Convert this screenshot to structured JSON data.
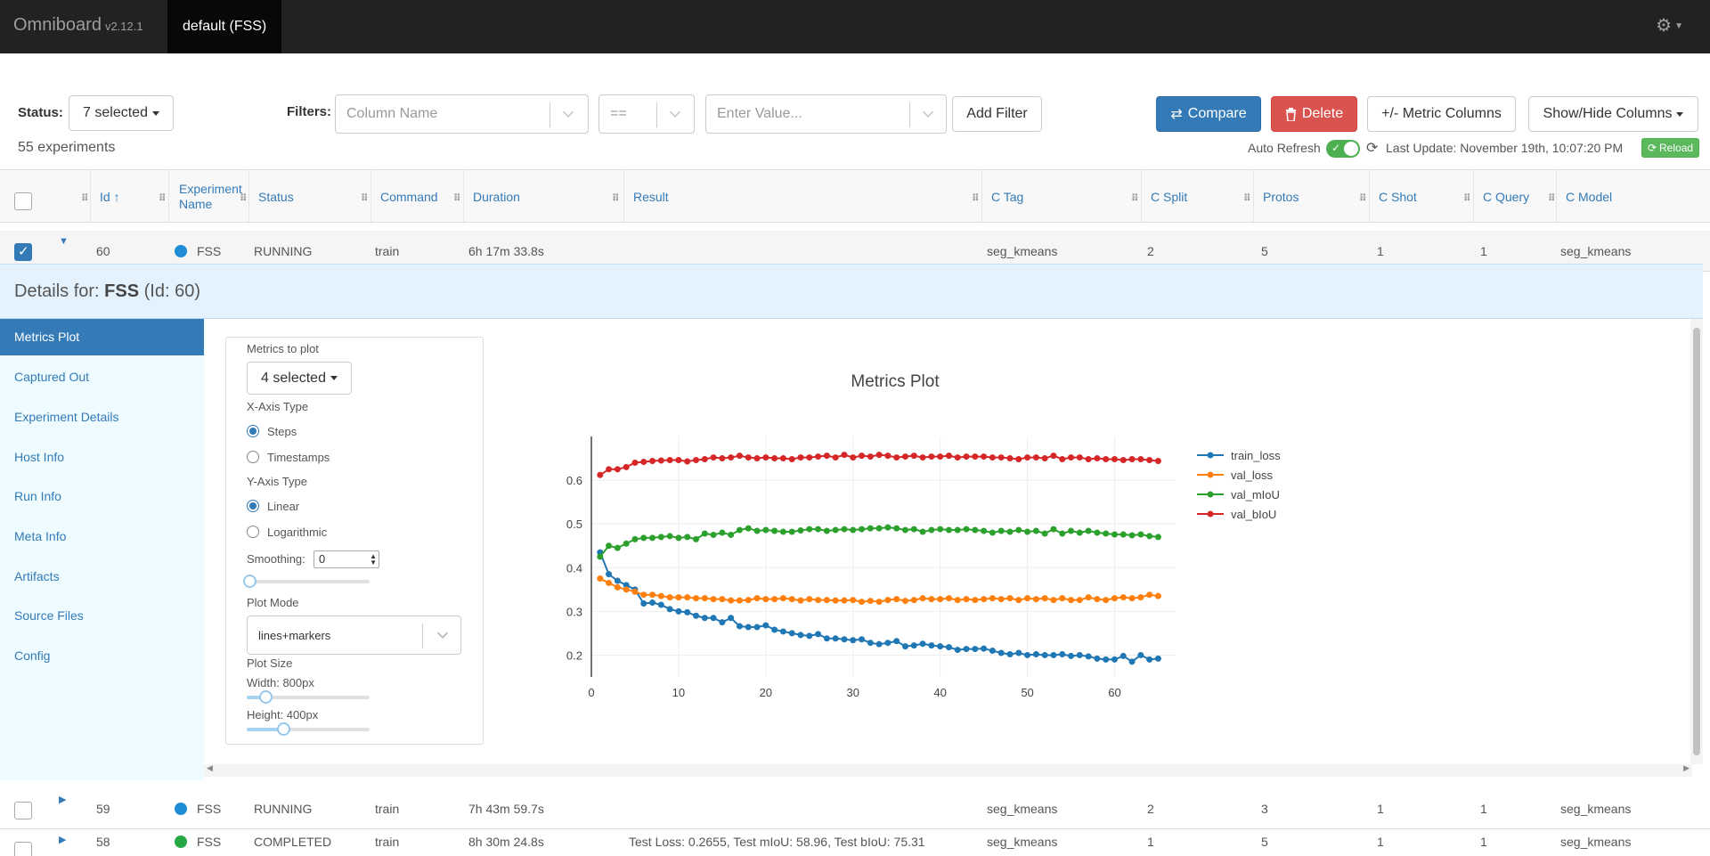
{
  "app": {
    "name": "Omniboard",
    "version": "v2.12.1",
    "nav_tab": "default (FSS)"
  },
  "toolbar": {
    "status_label": "Status:",
    "status_value": "7 selected",
    "filters_label": "Filters:",
    "column_placeholder": "Column Name",
    "operator_value": "==",
    "value_placeholder": "Enter Value...",
    "add_filter": "Add Filter",
    "compare": "Compare",
    "delete": "Delete",
    "metric_columns": "+/- Metric Columns",
    "show_hide": "Show/Hide Columns",
    "experiment_count": "55 experiments",
    "auto_refresh": "Auto Refresh",
    "last_update": "Last Update: November 19th, 10:07:20 PM",
    "reload": "Reload"
  },
  "table": {
    "headers": {
      "id": "Id ↑",
      "experiment_name": "Experiment Name",
      "status": "Status",
      "command": "Command",
      "duration": "Duration",
      "result": "Result",
      "c_tag": "C Tag",
      "c_split": "C Split",
      "protos": "Protos",
      "c_shot": "C Shot",
      "c_query": "C Query",
      "c_model": "C Model"
    },
    "rows": [
      {
        "id": "60",
        "name": "FSS",
        "status": "RUNNING",
        "command": "train",
        "duration": "6h 17m 33.8s",
        "result": "",
        "c_tag": "seg_kmeans",
        "c_split": "2",
        "protos": "5",
        "c_shot": "1",
        "c_query": "1",
        "c_model": "seg_kmeans",
        "checked": true,
        "dot_color": "#1f8dd6"
      },
      {
        "id": "59",
        "name": "FSS",
        "status": "RUNNING",
        "command": "train",
        "duration": "7h 43m 59.7s",
        "result": "",
        "c_tag": "seg_kmeans",
        "c_split": "2",
        "protos": "3",
        "c_shot": "1",
        "c_query": "1",
        "c_model": "seg_kmeans",
        "checked": false,
        "dot_color": "#1f8dd6"
      },
      {
        "id": "58",
        "name": "FSS",
        "status": "COMPLETED",
        "command": "train",
        "duration": "8h 30m 24.8s",
        "result": "Test Loss: 0.2655, Test mIoU: 58.96, Test bIoU: 75.31",
        "c_tag": "seg_kmeans",
        "c_split": "1",
        "protos": "5",
        "c_shot": "1",
        "c_query": "1",
        "c_model": "seg_kmeans",
        "checked": false,
        "dot_color": "#28a745"
      }
    ]
  },
  "details": {
    "prefix": "Details for:",
    "name": "FSS",
    "id_text": "(Id: 60)",
    "tabs": [
      "Metrics Plot",
      "Captured Out",
      "Experiment Details",
      "Host Info",
      "Run Info",
      "Meta Info",
      "Artifacts",
      "Source Files",
      "Config"
    ],
    "active_tab": "Metrics Plot"
  },
  "plot_controls": {
    "metrics_label": "Metrics to plot",
    "metrics_value": "4 selected",
    "x_axis_label": "X-Axis Type",
    "x_options": [
      "Steps",
      "Timestamps"
    ],
    "x_selected": "Steps",
    "y_axis_label": "Y-Axis Type",
    "y_options": [
      "Linear",
      "Logarithmic"
    ],
    "y_selected": "Linear",
    "smoothing_label": "Smoothing:",
    "smoothing_value": "0",
    "plot_mode_label": "Plot Mode",
    "plot_mode_value": "lines+markers",
    "plot_size_label": "Plot Size",
    "width_label": "Width: 800px",
    "height_label": "Height: 400px",
    "width_fraction": 0.15,
    "height_fraction": 0.3
  },
  "chart_data": {
    "type": "line",
    "title": "Metrics Plot",
    "xlabel": "",
    "ylabel": "",
    "xlim": [
      0,
      67
    ],
    "ylim": [
      0.15,
      0.7
    ],
    "x_ticks": [
      0,
      10,
      20,
      30,
      40,
      50,
      60
    ],
    "y_ticks": [
      0.2,
      0.3,
      0.4,
      0.5,
      0.6
    ],
    "grid": true,
    "legend": "right",
    "x": [
      1,
      2,
      3,
      4,
      5,
      6,
      7,
      8,
      9,
      10,
      11,
      12,
      13,
      14,
      15,
      16,
      17,
      18,
      19,
      20,
      21,
      22,
      23,
      24,
      25,
      26,
      27,
      28,
      29,
      30,
      31,
      32,
      33,
      34,
      35,
      36,
      37,
      38,
      39,
      40,
      41,
      42,
      43,
      44,
      45,
      46,
      47,
      48,
      49,
      50,
      51,
      52,
      53,
      54,
      55,
      56,
      57,
      58,
      59,
      60,
      61,
      62,
      63,
      64,
      65
    ],
    "series": [
      {
        "name": "train_loss",
        "color": "#1f77b4",
        "values": [
          0.435,
          0.385,
          0.37,
          0.36,
          0.35,
          0.318,
          0.32,
          0.315,
          0.305,
          0.3,
          0.298,
          0.29,
          0.285,
          0.285,
          0.275,
          0.285,
          0.266,
          0.264,
          0.264,
          0.268,
          0.258,
          0.254,
          0.25,
          0.246,
          0.244,
          0.248,
          0.238,
          0.238,
          0.236,
          0.234,
          0.236,
          0.228,
          0.225,
          0.228,
          0.232,
          0.22,
          0.222,
          0.226,
          0.222,
          0.22,
          0.218,
          0.212,
          0.214,
          0.214,
          0.215,
          0.21,
          0.205,
          0.202,
          0.205,
          0.2,
          0.202,
          0.2,
          0.2,
          0.202,
          0.198,
          0.2,
          0.197,
          0.192,
          0.19,
          0.19,
          0.198,
          0.185,
          0.2,
          0.19,
          0.192
        ]
      },
      {
        "name": "val_loss",
        "color": "#ff7f0e",
        "values": [
          0.375,
          0.365,
          0.355,
          0.35,
          0.345,
          0.338,
          0.338,
          0.335,
          0.332,
          0.332,
          0.332,
          0.33,
          0.33,
          0.328,
          0.328,
          0.325,
          0.325,
          0.326,
          0.33,
          0.328,
          0.328,
          0.33,
          0.328,
          0.325,
          0.328,
          0.326,
          0.326,
          0.325,
          0.325,
          0.326,
          0.322,
          0.324,
          0.322,
          0.326,
          0.328,
          0.324,
          0.326,
          0.33,
          0.328,
          0.328,
          0.33,
          0.326,
          0.328,
          0.326,
          0.328,
          0.33,
          0.328,
          0.33,
          0.326,
          0.33,
          0.328,
          0.33,
          0.326,
          0.33,
          0.326,
          0.326,
          0.332,
          0.328,
          0.326,
          0.33,
          0.332,
          0.33,
          0.332,
          0.338,
          0.335
        ]
      },
      {
        "name": "val_mIoU",
        "color": "#2ca02c",
        "values": [
          0.425,
          0.45,
          0.445,
          0.455,
          0.465,
          0.468,
          0.468,
          0.47,
          0.472,
          0.468,
          0.47,
          0.465,
          0.478,
          0.475,
          0.48,
          0.475,
          0.486,
          0.49,
          0.484,
          0.486,
          0.484,
          0.482,
          0.482,
          0.485,
          0.488,
          0.488,
          0.484,
          0.486,
          0.488,
          0.486,
          0.488,
          0.49,
          0.49,
          0.492,
          0.49,
          0.486,
          0.488,
          0.482,
          0.486,
          0.488,
          0.486,
          0.486,
          0.488,
          0.486,
          0.484,
          0.48,
          0.484,
          0.482,
          0.486,
          0.482,
          0.484,
          0.478,
          0.488,
          0.478,
          0.484,
          0.48,
          0.484,
          0.48,
          0.478,
          0.476,
          0.476,
          0.474,
          0.476,
          0.472,
          0.47
        ]
      },
      {
        "name": "val_bIoU",
        "color": "#d62728",
        "values": [
          0.612,
          0.625,
          0.625,
          0.63,
          0.64,
          0.642,
          0.644,
          0.645,
          0.646,
          0.646,
          0.643,
          0.646,
          0.648,
          0.652,
          0.65,
          0.652,
          0.656,
          0.652,
          0.65,
          0.652,
          0.65,
          0.65,
          0.648,
          0.652,
          0.652,
          0.654,
          0.656,
          0.652,
          0.658,
          0.652,
          0.656,
          0.654,
          0.658,
          0.656,
          0.652,
          0.654,
          0.656,
          0.652,
          0.654,
          0.654,
          0.656,
          0.652,
          0.654,
          0.654,
          0.654,
          0.652,
          0.652,
          0.65,
          0.648,
          0.652,
          0.652,
          0.65,
          0.656,
          0.648,
          0.652,
          0.652,
          0.648,
          0.65,
          0.648,
          0.648,
          0.646,
          0.648,
          0.648,
          0.646,
          0.644
        ]
      }
    ]
  }
}
